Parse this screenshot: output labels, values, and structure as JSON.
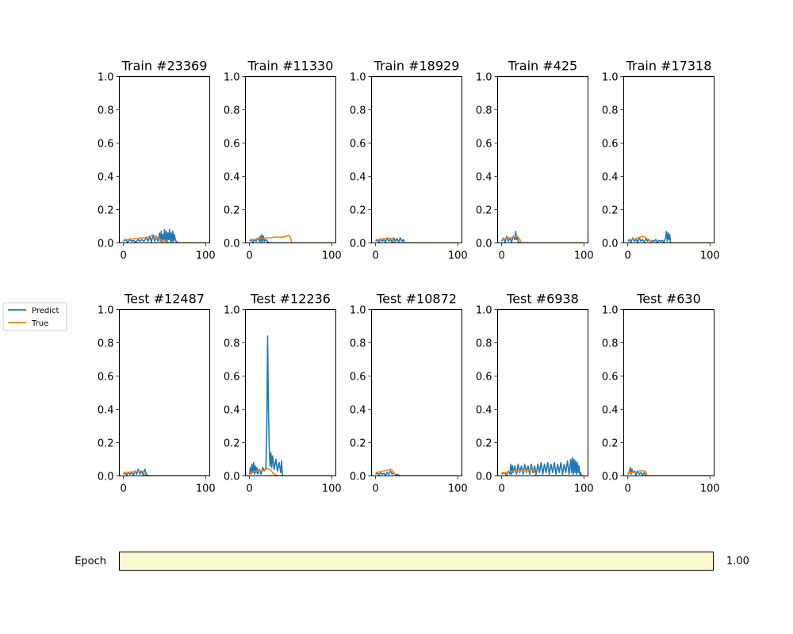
{
  "legend": {
    "entries": [
      {
        "label": "Predict",
        "color": "#1f77b4"
      },
      {
        "label": "True",
        "color": "#ff7f0e"
      }
    ]
  },
  "slider": {
    "label": "Epoch",
    "value_text": "1.00",
    "value": 1.0,
    "fill_color": "#fafad2"
  },
  "chart_data": [
    {
      "type": "line",
      "title": "Train #23369",
      "xlim": [
        -5,
        105
      ],
      "ylim": [
        0,
        1
      ],
      "xticks": [
        "0",
        "100"
      ],
      "yticks": [
        "0.0",
        "0.2",
        "0.4",
        "0.6",
        "0.8",
        "1.0"
      ],
      "series": [
        {
          "name": "Predict",
          "x": [
            0,
            3,
            5,
            8,
            10,
            12,
            15,
            18,
            20,
            22,
            25,
            28,
            30,
            32,
            34,
            36,
            38,
            40,
            42,
            44,
            45,
            46,
            47,
            48,
            49,
            50,
            51,
            52,
            53,
            54,
            55,
            56,
            57,
            58,
            59,
            60,
            61,
            62,
            63,
            64,
            66,
            70,
            80,
            90,
            100
          ],
          "y": [
            0.01,
            0.02,
            0.005,
            0.02,
            0.01,
            0.015,
            0.005,
            0.02,
            0.01,
            0.02,
            0.01,
            0.03,
            0.01,
            0.04,
            0.005,
            0.05,
            0.01,
            0.04,
            0.01,
            0.06,
            0.01,
            0.07,
            0.005,
            0.05,
            0.02,
            0.08,
            0.01,
            0.07,
            0.005,
            0.06,
            0.02,
            0.08,
            0.01,
            0.06,
            0.005,
            0.07,
            0.01,
            0.05,
            0.02,
            0.01,
            0.0,
            0.0,
            0.0,
            0.0,
            0.0
          ]
        },
        {
          "name": "True",
          "x": [
            0,
            5,
            10,
            15,
            20,
            25,
            30,
            32,
            35,
            38,
            40,
            45,
            50,
            55,
            100
          ],
          "y": [
            0.02,
            0.02,
            0.025,
            0.025,
            0.03,
            0.03,
            0.035,
            0.04,
            0.045,
            0.04,
            0.035,
            0.02,
            0.01,
            0.0,
            0.0
          ]
        }
      ]
    },
    {
      "type": "line",
      "title": "Train #11330",
      "xlim": [
        -5,
        105
      ],
      "ylim": [
        0,
        1
      ],
      "xticks": [
        "0",
        "100"
      ],
      "yticks": [
        "0.0",
        "0.2",
        "0.4",
        "0.6",
        "0.8",
        "1.0"
      ],
      "series": [
        {
          "name": "Predict",
          "x": [
            0,
            2,
            4,
            6,
            8,
            10,
            12,
            13,
            14,
            15,
            16,
            17,
            18,
            20,
            22,
            25,
            100
          ],
          "y": [
            0.01,
            0.02,
            0.005,
            0.02,
            0.01,
            0.03,
            0.01,
            0.04,
            0.005,
            0.05,
            0.01,
            0.04,
            0.01,
            0.02,
            0.005,
            0.0,
            0.0
          ]
        },
        {
          "name": "True",
          "x": [
            0,
            5,
            10,
            15,
            20,
            25,
            30,
            35,
            40,
            45,
            48,
            50,
            51,
            52,
            100
          ],
          "y": [
            0.02,
            0.02,
            0.025,
            0.025,
            0.03,
            0.03,
            0.035,
            0.035,
            0.035,
            0.04,
            0.045,
            0.03,
            0.005,
            0.0,
            0.0
          ]
        }
      ]
    },
    {
      "type": "line",
      "title": "Train #18929",
      "xlim": [
        -5,
        105
      ],
      "ylim": [
        0,
        1
      ],
      "xticks": [
        "0",
        "100"
      ],
      "yticks": [
        "0.0",
        "0.2",
        "0.4",
        "0.6",
        "0.8",
        "1.0"
      ],
      "series": [
        {
          "name": "Predict",
          "x": [
            0,
            2,
            4,
            6,
            8,
            10,
            12,
            14,
            16,
            18,
            20,
            22,
            24,
            26,
            28,
            30,
            32,
            34,
            35,
            100
          ],
          "y": [
            0.01,
            0.02,
            0.005,
            0.025,
            0.01,
            0.02,
            0.005,
            0.03,
            0.01,
            0.02,
            0.005,
            0.03,
            0.01,
            0.025,
            0.005,
            0.03,
            0.01,
            0.02,
            0.0,
            0.0
          ]
        },
        {
          "name": "True",
          "x": [
            0,
            5,
            10,
            15,
            20,
            22,
            24,
            26,
            100
          ],
          "y": [
            0.02,
            0.02,
            0.025,
            0.03,
            0.025,
            0.01,
            0.0,
            0.0,
            0.0
          ]
        }
      ]
    },
    {
      "type": "line",
      "title": "Train #425",
      "xlim": [
        -5,
        105
      ],
      "ylim": [
        0,
        1
      ],
      "xticks": [
        "0",
        "100"
      ],
      "yticks": [
        "0.0",
        "0.2",
        "0.4",
        "0.6",
        "0.8",
        "1.0"
      ],
      "series": [
        {
          "name": "Predict",
          "x": [
            0,
            2,
            4,
            6,
            8,
            10,
            12,
            14,
            16,
            17,
            18,
            19,
            20,
            21,
            22,
            100
          ],
          "y": [
            0.01,
            0.03,
            0.005,
            0.04,
            0.01,
            0.03,
            0.005,
            0.04,
            0.02,
            0.07,
            0.02,
            0.04,
            0.01,
            0.0,
            0.0,
            0.0
          ]
        },
        {
          "name": "True",
          "x": [
            0,
            4,
            8,
            12,
            16,
            18,
            20,
            22,
            23,
            24,
            100
          ],
          "y": [
            0.02,
            0.025,
            0.03,
            0.03,
            0.035,
            0.04,
            0.035,
            0.02,
            0.005,
            0.0,
            0.0
          ]
        }
      ]
    },
    {
      "type": "line",
      "title": "Train #17318",
      "xlim": [
        -5,
        105
      ],
      "ylim": [
        0,
        1
      ],
      "xticks": [
        "0",
        "100"
      ],
      "yticks": [
        "0.0",
        "0.2",
        "0.4",
        "0.6",
        "0.8",
        "1.0"
      ],
      "series": [
        {
          "name": "Predict",
          "x": [
            0,
            2,
            4,
            6,
            8,
            10,
            12,
            14,
            16,
            18,
            20,
            22,
            24,
            26,
            28,
            30,
            32,
            34,
            36,
            38,
            40,
            42,
            44,
            46,
            47,
            48,
            49,
            50,
            51,
            52,
            100
          ],
          "y": [
            0.01,
            0.02,
            0.005,
            0.03,
            0.01,
            0.02,
            0.005,
            0.03,
            0.01,
            0.02,
            0.005,
            0.025,
            0.01,
            0.02,
            0.005,
            0.015,
            0.01,
            0.02,
            0.005,
            0.015,
            0.01,
            0.015,
            0.005,
            0.03,
            0.07,
            0.01,
            0.06,
            0.02,
            0.05,
            0.0,
            0.0
          ]
        },
        {
          "name": "True",
          "x": [
            0,
            5,
            10,
            15,
            18,
            20,
            22,
            25,
            28,
            30,
            100
          ],
          "y": [
            0.02,
            0.02,
            0.025,
            0.035,
            0.04,
            0.035,
            0.03,
            0.02,
            0.005,
            0.0,
            0.0
          ]
        }
      ]
    },
    {
      "type": "line",
      "title": "Test #12487",
      "xlim": [
        -5,
        105
      ],
      "ylim": [
        0,
        1
      ],
      "xticks": [
        "0",
        "100"
      ],
      "yticks": [
        "0.0",
        "0.2",
        "0.4",
        "0.6",
        "0.8",
        "1.0"
      ],
      "series": [
        {
          "name": "Predict",
          "x": [
            0,
            2,
            4,
            6,
            8,
            10,
            12,
            14,
            16,
            18,
            20,
            22,
            24,
            26,
            28,
            30,
            100
          ],
          "y": [
            0.01,
            0.02,
            0.005,
            0.02,
            0.01,
            0.02,
            0.005,
            0.03,
            0.01,
            0.04,
            0.01,
            0.03,
            0.005,
            0.04,
            0.01,
            0.0,
            0.0
          ]
        },
        {
          "name": "True",
          "x": [
            0,
            5,
            10,
            15,
            20,
            24,
            26,
            28,
            100
          ],
          "y": [
            0.02,
            0.02,
            0.025,
            0.025,
            0.03,
            0.025,
            0.01,
            0.0,
            0.0
          ]
        }
      ]
    },
    {
      "type": "line",
      "title": "Test #12236",
      "xlim": [
        -5,
        105
      ],
      "ylim": [
        0,
        1
      ],
      "xticks": [
        "0",
        "100"
      ],
      "yticks": [
        "0.0",
        "0.2",
        "0.4",
        "0.6",
        "0.8",
        "1.0"
      ],
      "series": [
        {
          "name": "Predict",
          "x": [
            0,
            1,
            2,
            3,
            4,
            5,
            6,
            7,
            8,
            9,
            10,
            12,
            14,
            16,
            18,
            20,
            21,
            22,
            23,
            24,
            25,
            26,
            27,
            28,
            30,
            32,
            34,
            36,
            38,
            39,
            40,
            100
          ],
          "y": [
            0.01,
            0.05,
            0.01,
            0.07,
            0.02,
            0.08,
            0.01,
            0.06,
            0.02,
            0.05,
            0.01,
            0.04,
            0.01,
            0.05,
            0.03,
            0.05,
            0.3,
            0.84,
            0.4,
            0.16,
            0.06,
            0.14,
            0.05,
            0.12,
            0.04,
            0.1,
            0.03,
            0.08,
            0.02,
            0.09,
            0.0,
            0.0
          ]
        },
        {
          "name": "True",
          "x": [
            0,
            5,
            10,
            15,
            18,
            20,
            22,
            24,
            26,
            28,
            30,
            35,
            40,
            100
          ],
          "y": [
            0.02,
            0.025,
            0.03,
            0.03,
            0.035,
            0.04,
            0.045,
            0.04,
            0.035,
            0.02,
            0.01,
            0.0,
            0.0,
            0.0
          ]
        }
      ]
    },
    {
      "type": "line",
      "title": "Test #10872",
      "xlim": [
        -5,
        105
      ],
      "ylim": [
        0,
        1
      ],
      "xticks": [
        "0",
        "100"
      ],
      "yticks": [
        "0.0",
        "0.2",
        "0.4",
        "0.6",
        "0.8",
        "1.0"
      ],
      "series": [
        {
          "name": "Predict",
          "x": [
            0,
            2,
            4,
            6,
            8,
            10,
            12,
            14,
            16,
            18,
            20,
            22,
            24,
            26,
            28,
            30,
            100
          ],
          "y": [
            0.01,
            0.02,
            0.005,
            0.02,
            0.01,
            0.015,
            0.005,
            0.02,
            0.01,
            0.03,
            0.01,
            0.02,
            0.005,
            0.01,
            0.005,
            0.0,
            0.0
          ]
        },
        {
          "name": "True",
          "x": [
            0,
            5,
            10,
            15,
            18,
            20,
            22,
            24,
            26,
            100
          ],
          "y": [
            0.02,
            0.025,
            0.03,
            0.035,
            0.04,
            0.035,
            0.02,
            0.005,
            0.0,
            0.0
          ]
        }
      ]
    },
    {
      "type": "line",
      "title": "Test #6938",
      "xlim": [
        -5,
        105
      ],
      "ylim": [
        0,
        1
      ],
      "xticks": [
        "0",
        "100"
      ],
      "yticks": [
        "0.0",
        "0.2",
        "0.4",
        "0.6",
        "0.8",
        "1.0"
      ],
      "series": [
        {
          "name": "Predict",
          "x": [
            0,
            3,
            6,
            8,
            10,
            11,
            12,
            13,
            14,
            16,
            18,
            20,
            22,
            24,
            26,
            28,
            30,
            32,
            34,
            36,
            38,
            40,
            42,
            44,
            46,
            48,
            50,
            52,
            54,
            56,
            58,
            60,
            62,
            64,
            66,
            68,
            70,
            72,
            74,
            76,
            78,
            80,
            82,
            84,
            85,
            86,
            87,
            88,
            89,
            90,
            91,
            92,
            93,
            94,
            95,
            96,
            97,
            100
          ],
          "y": [
            0.01,
            0.02,
            0.005,
            0.03,
            0.01,
            0.07,
            0.01,
            0.06,
            0.02,
            0.06,
            0.01,
            0.07,
            0.02,
            0.06,
            0.01,
            0.07,
            0.02,
            0.06,
            0.01,
            0.07,
            0.02,
            0.06,
            0.01,
            0.07,
            0.02,
            0.08,
            0.01,
            0.07,
            0.02,
            0.08,
            0.01,
            0.07,
            0.02,
            0.08,
            0.01,
            0.07,
            0.02,
            0.08,
            0.01,
            0.07,
            0.02,
            0.09,
            0.01,
            0.1,
            0.02,
            0.11,
            0.01,
            0.1,
            0.02,
            0.09,
            0.01,
            0.08,
            0.02,
            0.06,
            0.01,
            0.02,
            0.0,
            0.0
          ]
        },
        {
          "name": "True",
          "x": [
            0,
            5,
            10,
            15,
            20,
            25,
            30,
            35,
            38,
            40,
            41,
            42,
            100
          ],
          "y": [
            0.02,
            0.02,
            0.025,
            0.03,
            0.03,
            0.03,
            0.03,
            0.035,
            0.035,
            0.03,
            0.005,
            0.0,
            0.0
          ]
        }
      ]
    },
    {
      "type": "line",
      "title": "Test #630",
      "xlim": [
        -5,
        105
      ],
      "ylim": [
        0,
        1
      ],
      "xticks": [
        "0",
        "100"
      ],
      "yticks": [
        "0.0",
        "0.2",
        "0.4",
        "0.6",
        "0.8",
        "1.0"
      ],
      "series": [
        {
          "name": "Predict",
          "x": [
            0,
            2,
            3,
            4,
            5,
            6,
            8,
            10,
            12,
            14,
            16,
            18,
            20,
            22,
            24,
            100
          ],
          "y": [
            0.01,
            0.02,
            0.05,
            0.01,
            0.04,
            0.02,
            0.03,
            0.005,
            0.03,
            0.01,
            0.02,
            0.005,
            0.02,
            0.0,
            0.0,
            0.0
          ]
        },
        {
          "name": "True",
          "x": [
            0,
            5,
            10,
            15,
            20,
            22,
            23,
            24,
            100
          ],
          "y": [
            0.02,
            0.02,
            0.025,
            0.03,
            0.03,
            0.025,
            0.005,
            0.0,
            0.0
          ]
        }
      ]
    }
  ]
}
